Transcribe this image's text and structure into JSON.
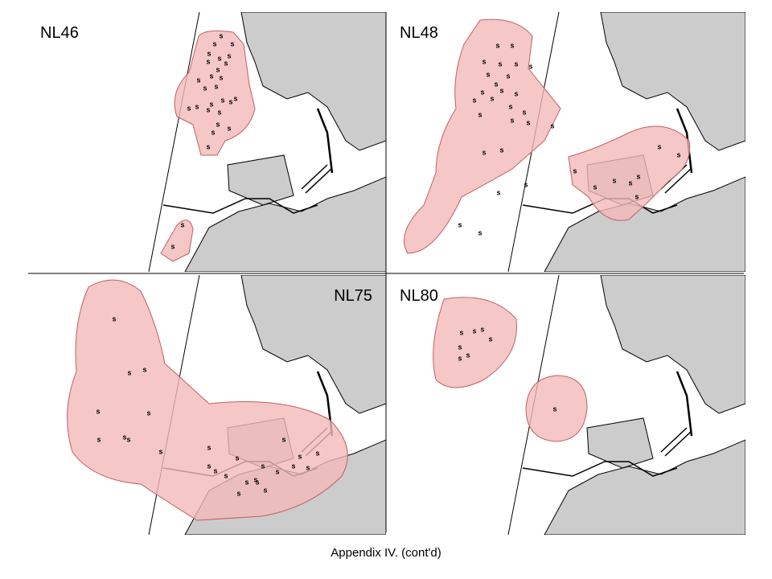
{
  "panels": [
    {
      "label": "NL46"
    },
    {
      "label": "NL48"
    },
    {
      "label": "NL75"
    },
    {
      "label": "NL80"
    }
  ],
  "marker_label": "s",
  "caption": "Appendix IV.  (cont'd)"
}
